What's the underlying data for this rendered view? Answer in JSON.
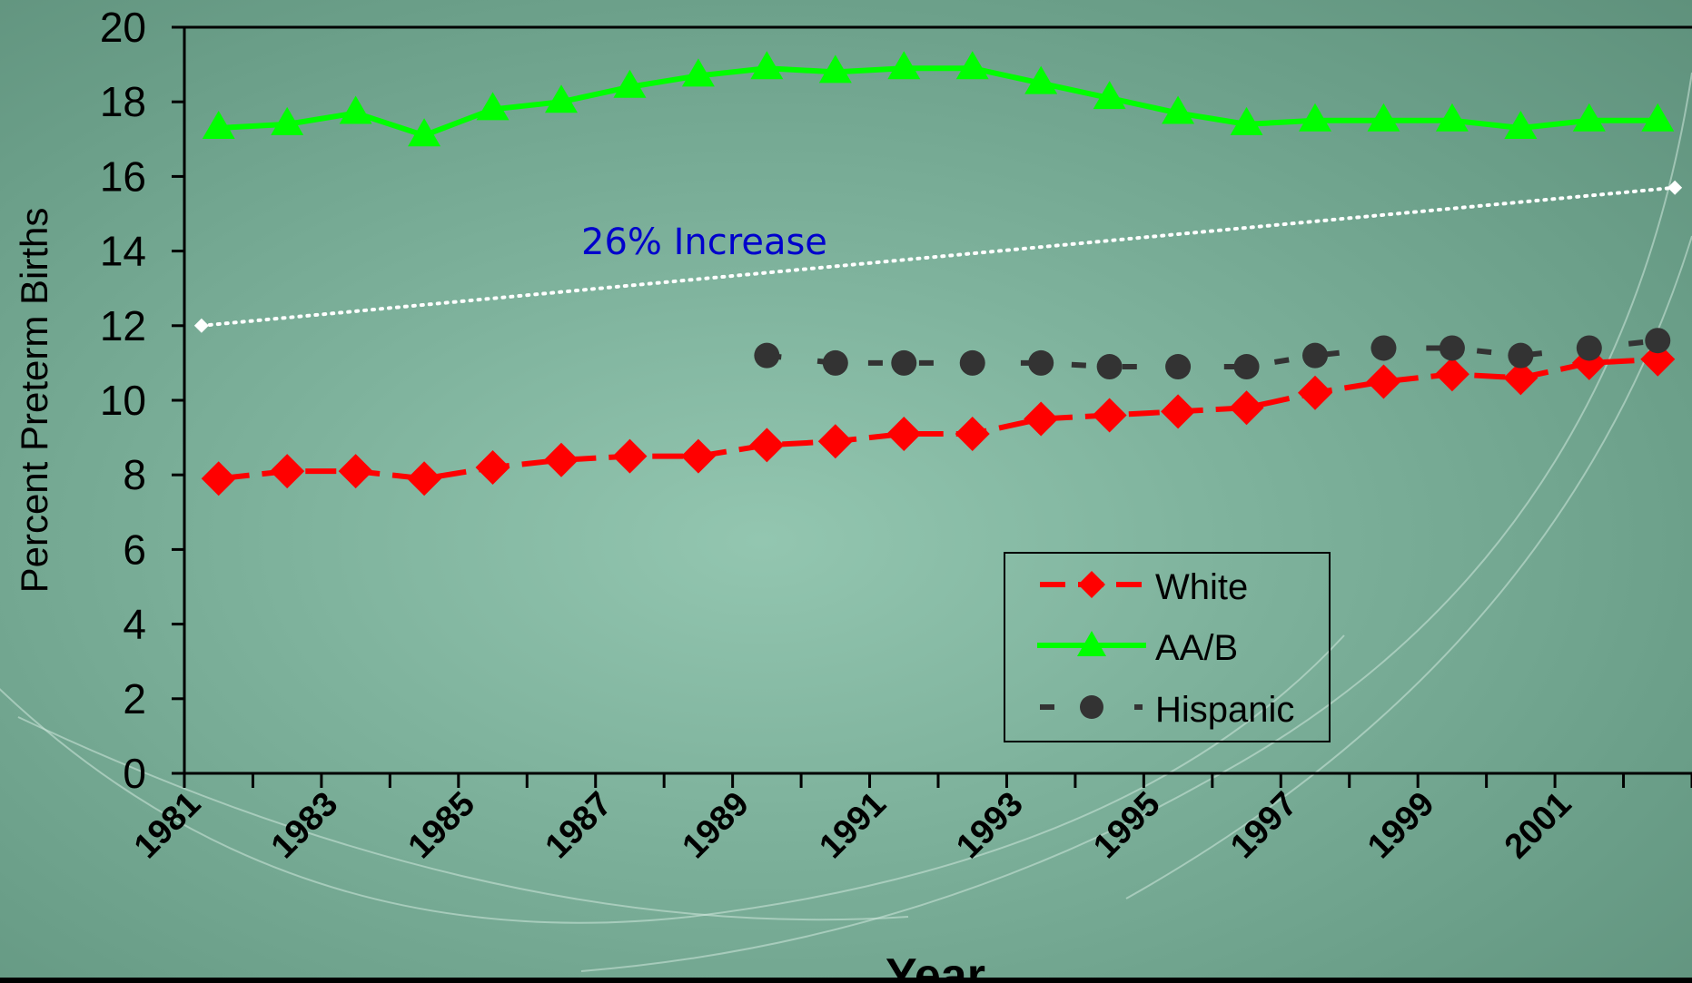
{
  "chart_data": {
    "type": "line",
    "title": "",
    "xlabel": "Year",
    "ylabel": "Percent Preterm Births",
    "ylim": [
      0,
      20
    ],
    "yticks": [
      0,
      2,
      4,
      6,
      8,
      10,
      12,
      14,
      16,
      18,
      20
    ],
    "x": [
      1981,
      1982,
      1983,
      1984,
      1985,
      1986,
      1987,
      1988,
      1989,
      1990,
      1991,
      1992,
      1993,
      1994,
      1995,
      1996,
      1997,
      1998,
      1999,
      2000,
      2001,
      2002
    ],
    "xtick_labels": [
      "1981",
      "1983",
      "1985",
      "1987",
      "1989",
      "1991",
      "1993",
      "1995",
      "1997",
      "1999",
      "2001"
    ],
    "series": [
      {
        "name": "White",
        "color": "#ff0000",
        "marker": "diamond",
        "line": "dashed",
        "values": [
          7.9,
          8.1,
          8.1,
          7.9,
          8.2,
          8.4,
          8.5,
          8.5,
          8.8,
          8.9,
          9.1,
          9.1,
          9.5,
          9.6,
          9.7,
          9.8,
          10.2,
          10.5,
          10.7,
          10.6,
          11.0,
          11.1
        ]
      },
      {
        "name": "AA/B",
        "color": "#00ff00",
        "marker": "triangle",
        "line": "solid",
        "values": [
          17.3,
          17.4,
          17.7,
          17.1,
          17.8,
          18.0,
          18.4,
          18.7,
          18.9,
          18.8,
          18.9,
          18.9,
          18.5,
          18.1,
          17.7,
          17.4,
          17.5,
          17.5,
          17.5,
          17.3,
          17.5,
          17.5
        ]
      },
      {
        "name": "Hispanic",
        "color": "#333333",
        "marker": "circle",
        "line": "dashed",
        "values": [
          null,
          null,
          null,
          null,
          null,
          null,
          null,
          null,
          11.2,
          11.0,
          11.0,
          11.0,
          11.0,
          10.9,
          10.9,
          10.9,
          11.2,
          11.4,
          11.4,
          11.2,
          11.4,
          11.6
        ]
      }
    ],
    "trendline": {
      "color": "#ffffff",
      "from": [
        1981,
        12.0
      ],
      "to": [
        2002,
        15.7
      ]
    },
    "annotation": {
      "text": "26% Increase",
      "color": "#0000cc"
    },
    "legend_position": "lower-right"
  }
}
